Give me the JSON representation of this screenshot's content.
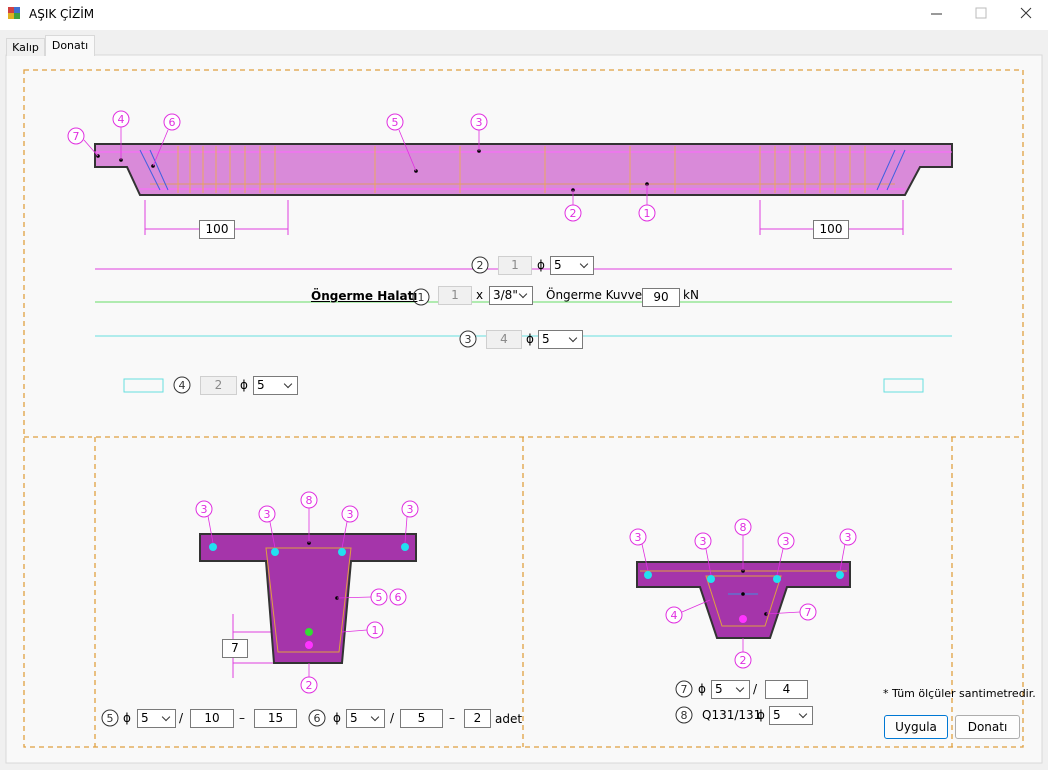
{
  "window_title": "AŞIK ÇİZİM",
  "tabs": [
    "Kalıp",
    "Donatı"
  ],
  "elevation": {
    "callouts": [
      "7",
      "4",
      "6",
      "5",
      "3",
      "2",
      "1"
    ],
    "dimensions": [
      "100",
      "100"
    ]
  },
  "bars": {
    "bar2": {
      "callout": "2",
      "count": "1",
      "symbol": "ϕ",
      "diameter": "5"
    },
    "strand": {
      "label": "Öngerme Halatı",
      "callout": "1",
      "count": "1",
      "times": "x",
      "size": "3/8\"",
      "force_label": "Öngerme Kuvveti :",
      "force": "90",
      "unit": "kN"
    },
    "bar3": {
      "callout": "3",
      "count": "4",
      "symbol": "ϕ",
      "diameter": "5"
    },
    "bar4": {
      "callout": "4",
      "count": "2",
      "symbol": "ϕ",
      "diameter": "5"
    }
  },
  "section_left": {
    "callouts": [
      "3",
      "3",
      "8",
      "3",
      "3",
      "5",
      "6",
      "1",
      "2"
    ],
    "dimension": "7",
    "stirrup5": {
      "callout": "5",
      "symbol": "ϕ",
      "diameter": "5",
      "slash": "/",
      "spacing_end": "10",
      "dash": "–",
      "spacing_mid": "15"
    },
    "stirrup6": {
      "callout": "6",
      "symbol": "ϕ",
      "diameter": "5",
      "slash": "/",
      "spacing": "5",
      "dash": "–",
      "count": "2",
      "unit": "adet"
    }
  },
  "section_right": {
    "callouts": [
      "3",
      "3",
      "8",
      "3",
      "3",
      "4",
      "7",
      "2"
    ],
    "row7": {
      "callout": "7",
      "symbol": "ϕ",
      "diameter": "5",
      "slash": "/",
      "spacing": "4"
    },
    "row8": {
      "callout": "8",
      "mesh": "Q131/131",
      "symbol": "ϕ",
      "diameter": "5"
    }
  },
  "note": "* Tüm ölçüler santimetredir.",
  "buttons": [
    "Uygula",
    "Donatı"
  ]
}
